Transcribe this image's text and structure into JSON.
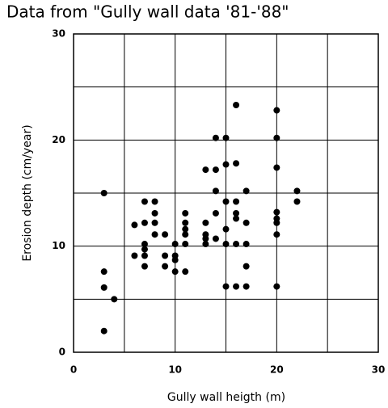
{
  "chart_data": {
    "type": "scatter",
    "title": "Data from \"Gully wall data '81-'88\"",
    "x_label": "Gully wall heigth (m)",
    "y_label": "Erosion depth (cm/year)",
    "color": "#000000",
    "xlim": [
      0,
      30
    ],
    "ylim": [
      0,
      30
    ],
    "xticks": [
      0,
      10,
      20,
      30
    ],
    "yticks": [
      0,
      10,
      20,
      30
    ],
    "grid_x": [
      5,
      15,
      25
    ],
    "grid_y": [
      5,
      15,
      25
    ],
    "grid": true,
    "x": [
      3,
      3,
      3,
      4,
      3,
      6,
      6,
      7,
      7,
      7,
      7,
      7,
      7,
      8,
      8,
      8,
      8,
      9,
      9,
      9,
      10,
      10,
      10,
      10,
      11,
      11,
      11,
      11,
      11,
      11,
      13,
      13,
      13,
      13,
      13,
      14,
      14,
      14,
      14,
      14,
      15,
      15,
      15,
      15,
      15,
      15,
      16,
      16,
      16,
      16,
      16,
      16,
      16,
      17,
      17,
      17,
      17,
      17,
      20,
      20,
      20,
      20,
      20,
      20,
      20,
      20,
      22,
      22
    ],
    "y": [
      15,
      7.6,
      6.1,
      5,
      2,
      12,
      9.1,
      14.2,
      12.2,
      10.2,
      9.7,
      9.1,
      8.1,
      14.2,
      13.1,
      12.2,
      11.1,
      11.1,
      9.1,
      8.1,
      9.1,
      8.7,
      7.6,
      10.2,
      13.1,
      12.2,
      11.6,
      11.1,
      10.2,
      7.6,
      12.2,
      11.1,
      10.7,
      10.2,
      17.2,
      17.2,
      20.2,
      15.2,
      13.1,
      10.7,
      20.2,
      17.7,
      14.2,
      11.6,
      10.2,
      6.2,
      23.3,
      17.8,
      14.2,
      13.1,
      12.6,
      10.2,
      6.2,
      15.2,
      12.2,
      10.2,
      8.1,
      6.2,
      22.8,
      20.2,
      17.4,
      13.2,
      12.6,
      11.1,
      6.2,
      12.2,
      15.2,
      14.2
    ]
  }
}
